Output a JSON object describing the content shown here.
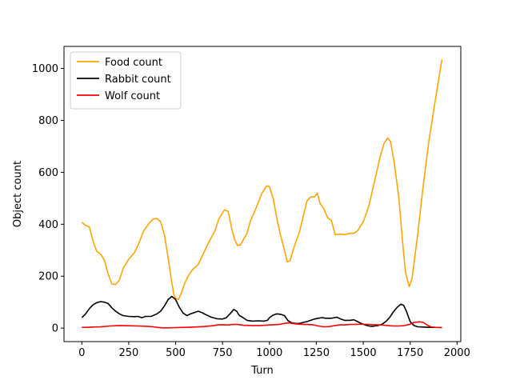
{
  "chart_data": {
    "type": "line",
    "title": "",
    "xlabel": "Turn",
    "ylabel": "Object count",
    "xlim": [
      -95,
      2020
    ],
    "ylim": [
      -52,
      1085
    ],
    "xticks": [
      0,
      250,
      500,
      750,
      1000,
      1250,
      1500,
      1750,
      2000
    ],
    "yticks": [
      0,
      200,
      400,
      600,
      800,
      1000
    ],
    "grid": false,
    "legend_position": "top-left",
    "series": [
      {
        "name": "Food count",
        "color": "#ffa500",
        "points": [
          [
            0,
            408
          ],
          [
            20,
            395
          ],
          [
            40,
            390
          ],
          [
            60,
            335
          ],
          [
            80,
            295
          ],
          [
            100,
            285
          ],
          [
            120,
            262
          ],
          [
            140,
            210
          ],
          [
            160,
            170
          ],
          [
            180,
            168
          ],
          [
            200,
            185
          ],
          [
            220,
            230
          ],
          [
            250,
            265
          ],
          [
            280,
            290
          ],
          [
            300,
            320
          ],
          [
            330,
            375
          ],
          [
            360,
            405
          ],
          [
            380,
            420
          ],
          [
            400,
            422
          ],
          [
            420,
            410
          ],
          [
            440,
            360
          ],
          [
            460,
            270
          ],
          [
            480,
            175
          ],
          [
            490,
            130
          ],
          [
            500,
            115
          ],
          [
            515,
            110
          ],
          [
            530,
            135
          ],
          [
            550,
            175
          ],
          [
            570,
            205
          ],
          [
            590,
            225
          ],
          [
            620,
            245
          ],
          [
            650,
            290
          ],
          [
            680,
            335
          ],
          [
            710,
            375
          ],
          [
            730,
            420
          ],
          [
            760,
            455
          ],
          [
            780,
            450
          ],
          [
            800,
            380
          ],
          [
            815,
            340
          ],
          [
            830,
            318
          ],
          [
            845,
            320
          ],
          [
            860,
            340
          ],
          [
            880,
            365
          ],
          [
            900,
            415
          ],
          [
            930,
            465
          ],
          [
            960,
            520
          ],
          [
            985,
            548
          ],
          [
            1000,
            545
          ],
          [
            1020,
            500
          ],
          [
            1040,
            420
          ],
          [
            1060,
            355
          ],
          [
            1080,
            300
          ],
          [
            1095,
            255
          ],
          [
            1110,
            260
          ],
          [
            1130,
            310
          ],
          [
            1160,
            370
          ],
          [
            1180,
            430
          ],
          [
            1200,
            490
          ],
          [
            1220,
            505
          ],
          [
            1240,
            505
          ],
          [
            1255,
            520
          ],
          [
            1270,
            480
          ],
          [
            1290,
            460
          ],
          [
            1310,
            425
          ],
          [
            1330,
            415
          ],
          [
            1350,
            360
          ],
          [
            1380,
            362
          ],
          [
            1400,
            360
          ],
          [
            1430,
            365
          ],
          [
            1450,
            365
          ],
          [
            1470,
            375
          ],
          [
            1500,
            410
          ],
          [
            1530,
            470
          ],
          [
            1560,
            565
          ],
          [
            1590,
            660
          ],
          [
            1610,
            710
          ],
          [
            1630,
            732
          ],
          [
            1645,
            720
          ],
          [
            1665,
            640
          ],
          [
            1690,
            500
          ],
          [
            1710,
            330
          ],
          [
            1725,
            215
          ],
          [
            1745,
            160
          ],
          [
            1760,
            190
          ],
          [
            1790,
            360
          ],
          [
            1820,
            550
          ],
          [
            1850,
            720
          ],
          [
            1880,
            860
          ],
          [
            1905,
            970
          ],
          [
            1920,
            1035
          ]
        ]
      },
      {
        "name": "Rabbit count",
        "color": "#000000",
        "points": [
          [
            0,
            40
          ],
          [
            20,
            55
          ],
          [
            40,
            75
          ],
          [
            60,
            90
          ],
          [
            80,
            98
          ],
          [
            100,
            102
          ],
          [
            120,
            100
          ],
          [
            140,
            95
          ],
          [
            160,
            78
          ],
          [
            180,
            65
          ],
          [
            200,
            55
          ],
          [
            220,
            48
          ],
          [
            250,
            45
          ],
          [
            280,
            44
          ],
          [
            300,
            45
          ],
          [
            320,
            40
          ],
          [
            340,
            45
          ],
          [
            370,
            45
          ],
          [
            400,
            55
          ],
          [
            420,
            65
          ],
          [
            440,
            85
          ],
          [
            460,
            110
          ],
          [
            480,
            122
          ],
          [
            500,
            110
          ],
          [
            520,
            80
          ],
          [
            540,
            58
          ],
          [
            560,
            48
          ],
          [
            580,
            55
          ],
          [
            600,
            60
          ],
          [
            620,
            65
          ],
          [
            640,
            60
          ],
          [
            660,
            52
          ],
          [
            690,
            42
          ],
          [
            720,
            36
          ],
          [
            750,
            35
          ],
          [
            770,
            40
          ],
          [
            790,
            55
          ],
          [
            810,
            72
          ],
          [
            825,
            65
          ],
          [
            840,
            48
          ],
          [
            860,
            40
          ],
          [
            880,
            30
          ],
          [
            910,
            27
          ],
          [
            940,
            28
          ],
          [
            970,
            27
          ],
          [
            990,
            30
          ],
          [
            1000,
            40
          ],
          [
            1020,
            50
          ],
          [
            1040,
            55
          ],
          [
            1060,
            53
          ],
          [
            1080,
            48
          ],
          [
            1100,
            28
          ],
          [
            1120,
            20
          ],
          [
            1140,
            18
          ],
          [
            1160,
            18
          ],
          [
            1180,
            22
          ],
          [
            1200,
            25
          ],
          [
            1220,
            30
          ],
          [
            1240,
            35
          ],
          [
            1260,
            38
          ],
          [
            1280,
            40
          ],
          [
            1300,
            38
          ],
          [
            1330,
            38
          ],
          [
            1360,
            42
          ],
          [
            1380,
            35
          ],
          [
            1400,
            30
          ],
          [
            1430,
            30
          ],
          [
            1450,
            32
          ],
          [
            1470,
            25
          ],
          [
            1490,
            18
          ],
          [
            1510,
            12
          ],
          [
            1530,
            8
          ],
          [
            1550,
            7
          ],
          [
            1560,
            8
          ],
          [
            1580,
            10
          ],
          [
            1600,
            15
          ],
          [
            1620,
            25
          ],
          [
            1640,
            40
          ],
          [
            1660,
            62
          ],
          [
            1680,
            80
          ],
          [
            1700,
            92
          ],
          [
            1715,
            88
          ],
          [
            1730,
            65
          ],
          [
            1750,
            25
          ],
          [
            1770,
            10
          ],
          [
            1790,
            5
          ],
          [
            1820,
            4
          ],
          [
            1850,
            3
          ],
          [
            1880,
            3
          ],
          [
            1920,
            2
          ]
        ]
      },
      {
        "name": "Wolf count",
        "color": "#ff0000",
        "points": [
          [
            0,
            3
          ],
          [
            30,
            3
          ],
          [
            60,
            4
          ],
          [
            100,
            5
          ],
          [
            150,
            8
          ],
          [
            200,
            10
          ],
          [
            250,
            9
          ],
          [
            300,
            8
          ],
          [
            350,
            7
          ],
          [
            380,
            5
          ],
          [
            400,
            3
          ],
          [
            430,
            1
          ],
          [
            460,
            1
          ],
          [
            500,
            2
          ],
          [
            550,
            3
          ],
          [
            600,
            4
          ],
          [
            650,
            6
          ],
          [
            700,
            9
          ],
          [
            720,
            12
          ],
          [
            750,
            13
          ],
          [
            780,
            12
          ],
          [
            800,
            14
          ],
          [
            830,
            14
          ],
          [
            860,
            11
          ],
          [
            900,
            10
          ],
          [
            950,
            10
          ],
          [
            1000,
            12
          ],
          [
            1050,
            14
          ],
          [
            1080,
            18
          ],
          [
            1100,
            20
          ],
          [
            1130,
            17
          ],
          [
            1160,
            15
          ],
          [
            1200,
            14
          ],
          [
            1230,
            13
          ],
          [
            1260,
            8
          ],
          [
            1290,
            5
          ],
          [
            1320,
            6
          ],
          [
            1350,
            10
          ],
          [
            1380,
            13
          ],
          [
            1400,
            12
          ],
          [
            1430,
            14
          ],
          [
            1450,
            14
          ],
          [
            1480,
            15
          ],
          [
            1500,
            15
          ],
          [
            1530,
            14
          ],
          [
            1560,
            13
          ],
          [
            1600,
            12
          ],
          [
            1630,
            10
          ],
          [
            1660,
            8
          ],
          [
            1690,
            8
          ],
          [
            1720,
            10
          ],
          [
            1750,
            15
          ],
          [
            1770,
            22
          ],
          [
            1800,
            24
          ],
          [
            1820,
            22
          ],
          [
            1840,
            12
          ],
          [
            1860,
            5
          ],
          [
            1880,
            3
          ],
          [
            1920,
            2
          ]
        ]
      }
    ]
  }
}
